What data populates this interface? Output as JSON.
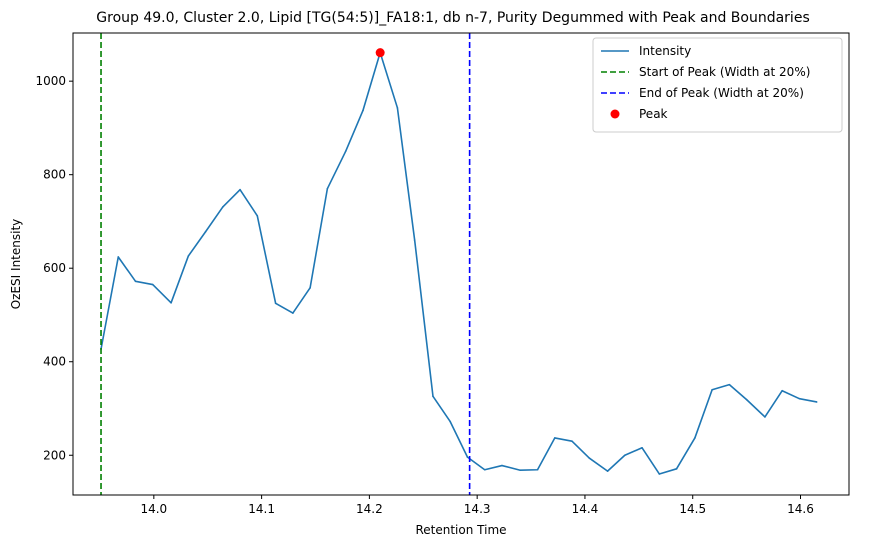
{
  "chart_data": {
    "type": "line",
    "title": "Group 49.0, Cluster 2.0, Lipid [TG(54:5)]_FA18:1, db n-7, Purity Degummed with Peak and Boundaries",
    "xlabel": "Retention Time",
    "ylabel": "OzESI Intensity",
    "xlim": [
      13.925,
      14.645
    ],
    "ylim": [
      115,
      1103
    ],
    "xticks": [
      14.0,
      14.1,
      14.2,
      14.3,
      14.4,
      14.5,
      14.6
    ],
    "xtick_labels": [
      "14.0",
      "14.1",
      "14.2",
      "14.3",
      "14.4",
      "14.5",
      "14.6"
    ],
    "yticks": [
      200,
      400,
      600,
      800,
      1000
    ],
    "ytick_labels": [
      "200",
      "400",
      "600",
      "800",
      "1000"
    ],
    "grid": false,
    "legend_position": "top-right",
    "series": [
      {
        "name": "Intensity",
        "color": "#1f77b4",
        "style": "solid",
        "x": [
          13.951,
          13.967,
          13.983,
          13.999,
          14.016,
          14.032,
          14.048,
          14.064,
          14.08,
          14.096,
          14.113,
          14.129,
          14.145,
          14.161,
          14.178,
          14.194,
          14.21,
          14.226,
          14.242,
          14.259,
          14.275,
          14.291,
          14.307,
          14.323,
          14.34,
          14.356,
          14.372,
          14.388,
          14.404,
          14.421,
          14.437,
          14.453,
          14.469,
          14.485,
          14.502,
          14.518,
          14.534,
          14.55,
          14.567,
          14.583,
          14.599,
          14.615
        ],
        "y": [
          427,
          624,
          572,
          565,
          526,
          626,
          678,
          731,
          768,
          712,
          525,
          504,
          558,
          770,
          850,
          937,
          1061,
          943,
          660,
          326,
          272,
          196,
          169,
          178,
          168,
          169,
          237,
          230,
          194,
          166,
          200,
          216,
          160,
          171,
          237,
          340,
          351,
          319,
          282,
          338,
          321,
          314
        ]
      },
      {
        "name": "Start of Peak (Width at 20%)",
        "color": "#008000",
        "style": "dashed",
        "x": [
          13.951,
          13.951
        ],
        "y": [
          115,
          1103
        ]
      },
      {
        "name": "End of Peak (Width at 20%)",
        "color": "#0000ff",
        "style": "dashed",
        "x": [
          14.293,
          14.293
        ],
        "y": [
          115,
          1103
        ]
      },
      {
        "name": "Peak",
        "color": "#ff0000",
        "style": "marker",
        "x": [
          14.21
        ],
        "y": [
          1061
        ]
      }
    ]
  }
}
